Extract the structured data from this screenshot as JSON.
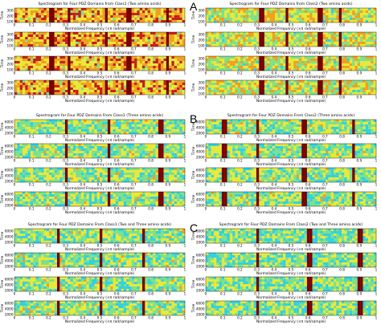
{
  "panel_labels": [
    "A",
    "B",
    "C"
  ],
  "colors": {
    "colormap": [
      "#0a3cff",
      "#1e90ff",
      "#33d1e0",
      "#7fe08a",
      "#e8e83a",
      "#f0a020",
      "#c81e1e",
      "#7a0000"
    ],
    "background": "#ffffff",
    "axis": "#000000"
  },
  "chart_data": [
    {
      "type": "heatmap",
      "panel": "A",
      "title": "Spectrogram for Four PDZ Domains from Class1 (Two amino acids)",
      "xlabel": "Normalized Frequency (×π rad/sample)",
      "ylabel": "Time",
      "xticks": [
        "0",
        "0.1",
        "0.2",
        "0.3",
        "0.4",
        "0.5",
        "0.6",
        "0.7",
        "0.8",
        "0.9",
        "1"
      ],
      "yticks": [
        "300",
        "200",
        "100"
      ],
      "rows": 4,
      "dominant_level": 4.8,
      "highlight_frequencies": [
        0.21,
        0.31,
        0.53,
        0.66,
        0.89
      ]
    },
    {
      "type": "heatmap",
      "panel": "A",
      "title": "Spectrogram for Four PDZ Domains from Class2 (Two amino acids)",
      "xlabel": "Normalized Frequency (×π rad/sample)",
      "ylabel": "Time",
      "xticks": [
        "0",
        "0.1",
        "0.2",
        "0.3",
        "0.4",
        "0.5",
        "0.6",
        "0.7",
        "0.8",
        "0.9",
        "1"
      ],
      "yticks": [
        "300",
        "200",
        "100"
      ],
      "rows": 4,
      "dominant_level": 3.8,
      "highlight_frequencies": [
        0.32,
        0.47,
        0.66,
        0.78
      ]
    },
    {
      "type": "heatmap",
      "panel": "B",
      "title": "Spectrogram for Four PDZ Domains From Class1 (Three amino acids)",
      "xlabel": "Normalized Frequency (×π rad/sample)",
      "ylabel": "Time",
      "xticks": [
        "0",
        "0.1",
        "0.2",
        "0.3",
        "0.4",
        "0.5",
        "0.6",
        "0.7",
        "0.8",
        "0.9",
        "1"
      ],
      "yticks": [
        "6000",
        "4000",
        "2000"
      ],
      "rows": 4,
      "dominant_level": 3.2,
      "highlight_frequencies": [
        0.3,
        0.55,
        0.85
      ]
    },
    {
      "type": "heatmap",
      "panel": "B",
      "title": "Spectrogram for Four PDZ Domains From Class2 (Three amino acids)",
      "xlabel": "Normalized Frequency (×π rad/sample)",
      "ylabel": "Time",
      "xticks": [
        "0",
        "0.1",
        "0.2",
        "0.3",
        "0.4",
        "0.5",
        "0.6",
        "0.7",
        "0.8",
        "0.9",
        "1"
      ],
      "yticks": [
        "6000",
        "4000",
        "2000"
      ],
      "rows": 4,
      "dominant_level": 3.2,
      "highlight_frequencies": [
        0.1,
        0.3,
        0.57,
        0.86
      ]
    },
    {
      "type": "heatmap",
      "panel": "C",
      "title": "Spectrogram for Four PDZ Domains From Class1 (Two and Three amino acids)",
      "xlabel": "Normalized Frequency (×π rad/sample)",
      "ylabel": "Time",
      "xticks": [
        "0",
        "0.1",
        "0.2",
        "0.3",
        "0.4",
        "0.5",
        "0.6",
        "0.7",
        "0.8",
        "0.9",
        "1"
      ],
      "yticks": [
        "6000",
        "4000",
        "2000"
      ],
      "rows": 4,
      "dominant_level": 3.2,
      "highlight_frequencies": [
        0.25,
        0.5,
        0.75
      ]
    },
    {
      "type": "heatmap",
      "panel": "C",
      "title": "Spectrogram for Four PDZ Domains From Class2 (Two and Three amino acids)",
      "xlabel": "Normalized Frequency (×π rad/sample)",
      "ylabel": "Time",
      "xticks": [
        "0",
        "0.1",
        "0.2",
        "0.3",
        "0.4",
        "0.5",
        "0.6",
        "0.7",
        "0.8",
        "0.9",
        "1"
      ],
      "yticks": [
        "6000",
        "4000",
        "2000"
      ],
      "rows": 4,
      "dominant_level": 3.0,
      "highlight_frequencies": [
        0.3,
        0.6,
        0.9
      ]
    }
  ]
}
